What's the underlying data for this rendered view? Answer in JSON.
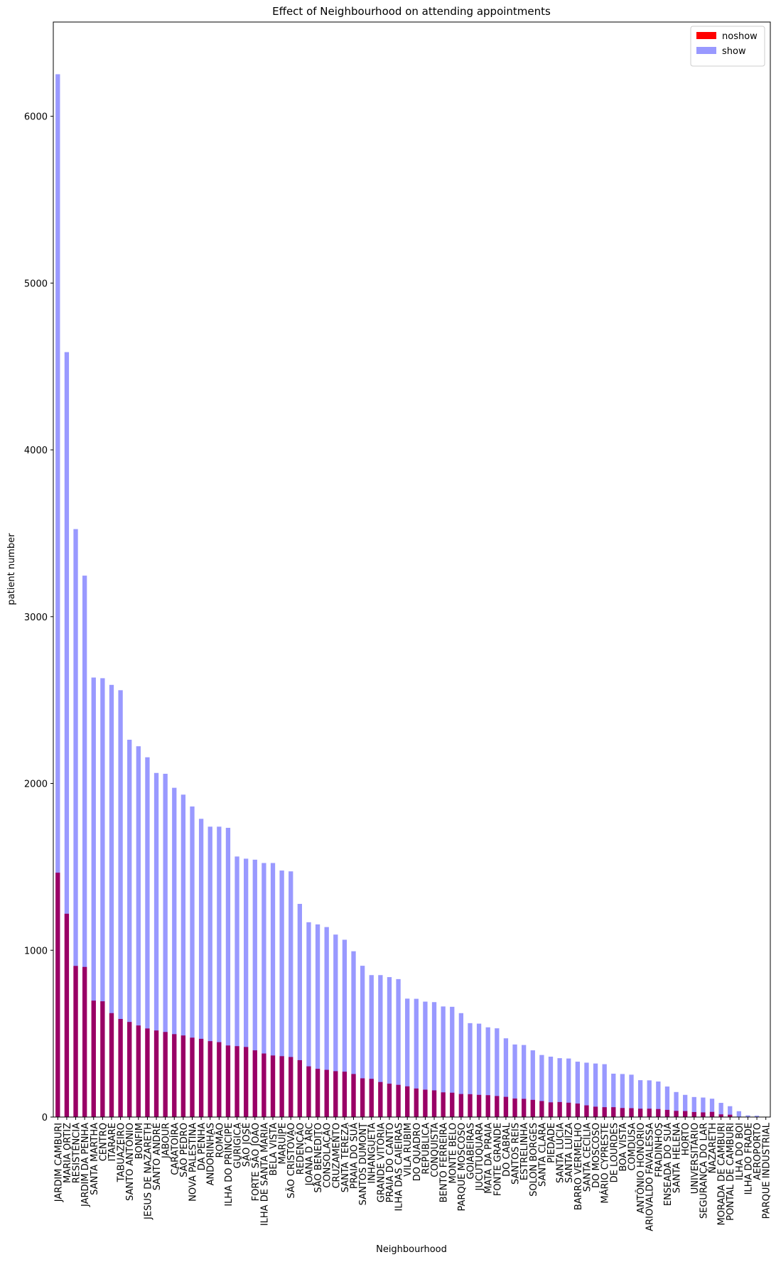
{
  "chart_data": {
    "type": "bar",
    "title": "Effect of Neighbourhood on attending appointments",
    "xlabel": "Neighbourhood",
    "ylabel": "patient number",
    "categories": [
      "JARDIM CAMBURI",
      "MARIA ORTIZ",
      "RESISTÊNCIA",
      "JARDIM DA PENHA",
      "SANTA MARTHA",
      "CENTRO",
      "ITARARÉ",
      "TABUAZEIRO",
      "SANTO ANTÔNIO",
      "BONFIM",
      "JESUS DE NAZARETH",
      "SANTO ANDRÉ",
      "JABOUR",
      "CARATOÍRA",
      "SÃO PEDRO",
      "NOVA PALESTINA",
      "DA PENHA",
      "ANDORINHAS",
      "ROMÃO",
      "ILHA DO PRÍNCIPE",
      "GURIGICA",
      "SÃO JOSÉ",
      "FORTE SÃO JOÃO",
      "ILHA DE SANTA MARIA",
      "BELA VISTA",
      "MARUÍPE",
      "SÃO CRISTÓVÃO",
      "REDENÇÃO",
      "JOANA D´ARC",
      "SÃO BENEDITO",
      "CONSOLAÇÃO",
      "CRUZAMENTO",
      "SANTA TEREZA",
      "PRAIA DO SUÁ",
      "SANTOS DUMONT",
      "INHANGUETÁ",
      "GRANDE VITÓRIA",
      "PRAIA DO CANTO",
      "ILHA DAS CAIEIRAS",
      "VILA RUBIM",
      "DO QUADRO",
      "REPÚBLICA",
      "CONQUISTA",
      "BENTO FERREIRA",
      "MONTE BELO",
      "PARQUE MOSCOSO",
      "GOIABEIRAS",
      "JUCUTUQUARA",
      "MATA DA PRAIA",
      "FONTE GRANDE",
      "DO CABRAL",
      "SANTOS REIS",
      "ESTRELINHA",
      "SOLON BORGES",
      "SANTA CLARA",
      "PIEDADE",
      "SANTA LÚCIA",
      "SANTA LUÍZA",
      "BARRO VERMELHO",
      "SANTA CECÍLIA",
      "DO MOSCOSO",
      "MÁRIO CYPRESTE",
      "DE LOURDES",
      "BOA VISTA",
      "COMDUSA",
      "ANTÔNIO HONÓRIO",
      "ARIOVALDO FAVALESSA",
      "FRADINHOS",
      "ENSEADA DO SUÁ",
      "SANTA HELENA",
      "HORTO",
      "UNIVERSITÁRIO",
      "SEGURANÇA DO LAR",
      "NAZARETH",
      "MORADA DE CAMBURI",
      "PONTAL DE CAMBURI",
      "ILHA DO BOI",
      "ILHA DO FRADE",
      "AEROPORTO",
      "PARQUE INDUSTRIAL"
    ],
    "series": [
      {
        "name": "noshow",
        "color": "#ff0000",
        "alpha": 1,
        "values": [
          1465,
          1219,
          906,
          900,
          698,
          694,
          623,
          588,
          570,
          549,
          531,
          519,
          510,
          497,
          489,
          476,
          469,
          455,
          449,
          429,
          425,
          420,
          400,
          381,
          369,
          365,
          360,
          341,
          304,
          289,
          283,
          275,
          272,
          258,
          232,
          229,
          210,
          200,
          193,
          184,
          171,
          164,
          160,
          148,
          146,
          138,
          137,
          133,
          131,
          126,
          121,
          111,
          109,
          103,
          96,
          88,
          90,
          86,
          81,
          70,
          62,
          59,
          59,
          54,
          53,
          50,
          50,
          48,
          43,
          37,
          36,
          30,
          28,
          31,
          16,
          14,
          2,
          2,
          2,
          0
        ]
      },
      {
        "name": "show",
        "color": "#0000ff",
        "alpha": 0.4,
        "values": [
          6252,
          4586,
          3525,
          3246,
          2635,
          2631,
          2591,
          2559,
          2262,
          2223,
          2157,
          2063,
          2058,
          1974,
          1933,
          1862,
          1788,
          1741,
          1741,
          1734,
          1562,
          1549,
          1543,
          1523,
          1523,
          1478,
          1473,
          1278,
          1168,
          1155,
          1139,
          1094,
          1063,
          994,
          907,
          851,
          851,
          839,
          827,
          710,
          709,
          692,
          689,
          663,
          661,
          623,
          563,
          560,
          538,
          532,
          472,
          435,
          432,
          400,
          372,
          362,
          353,
          351,
          332,
          326,
          321,
          317,
          260,
          258,
          254,
          221,
          220,
          213,
          183,
          150,
          133,
          120,
          117,
          110,
          85,
          65,
          35,
          10,
          8,
          1
        ]
      }
    ],
    "ylim": [
      0,
      6565
    ],
    "yticks": [
      0,
      1000,
      2000,
      3000,
      4000,
      5000,
      6000
    ],
    "grid": false,
    "legend": "upper right"
  }
}
